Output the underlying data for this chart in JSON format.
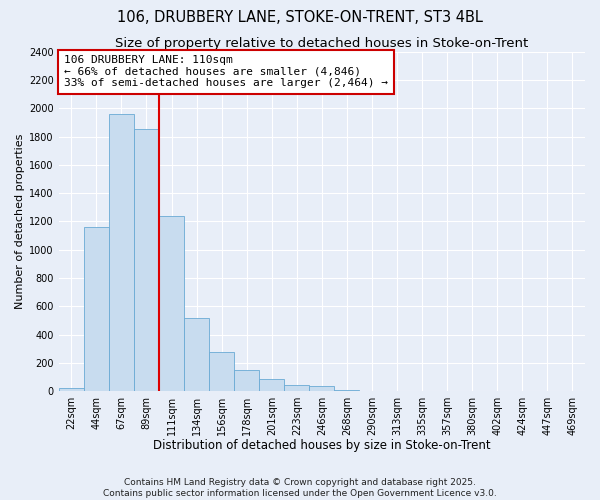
{
  "title": "106, DRUBBERY LANE, STOKE-ON-TRENT, ST3 4BL",
  "subtitle": "Size of property relative to detached houses in Stoke-on-Trent",
  "xlabel": "Distribution of detached houses by size in Stoke-on-Trent",
  "ylabel": "Number of detached properties",
  "bar_labels": [
    "22sqm",
    "44sqm",
    "67sqm",
    "89sqm",
    "111sqm",
    "134sqm",
    "156sqm",
    "178sqm",
    "201sqm",
    "223sqm",
    "246sqm",
    "268sqm",
    "290sqm",
    "313sqm",
    "335sqm",
    "357sqm",
    "380sqm",
    "402sqm",
    "424sqm",
    "447sqm",
    "469sqm"
  ],
  "bar_values": [
    25,
    1160,
    1960,
    1855,
    1235,
    520,
    275,
    150,
    85,
    42,
    35,
    8,
    2,
    1,
    0,
    0,
    0,
    0,
    0,
    0,
    0
  ],
  "bar_color": "#C8DCEF",
  "bar_edge_color": "#6AAAD4",
  "background_color": "#E8EEF8",
  "grid_color": "#FFFFFF",
  "vline_x_idx": 4,
  "vline_color": "#DD0000",
  "annotation_title": "106 DRUBBERY LANE: 110sqm",
  "annotation_line1": "← 66% of detached houses are smaller (4,846)",
  "annotation_line2": "33% of semi-detached houses are larger (2,464) →",
  "annotation_box_color": "#FFFFFF",
  "annotation_box_edge": "#CC0000",
  "ylim": [
    0,
    2400
  ],
  "yticks": [
    0,
    200,
    400,
    600,
    800,
    1000,
    1200,
    1400,
    1600,
    1800,
    2000,
    2200,
    2400
  ],
  "footer1": "Contains HM Land Registry data © Crown copyright and database right 2025.",
  "footer2": "Contains public sector information licensed under the Open Government Licence v3.0.",
  "title_fontsize": 10.5,
  "subtitle_fontsize": 9.5,
  "xlabel_fontsize": 8.5,
  "ylabel_fontsize": 8,
  "tick_fontsize": 7,
  "annotation_fontsize": 8,
  "footer_fontsize": 6.5
}
